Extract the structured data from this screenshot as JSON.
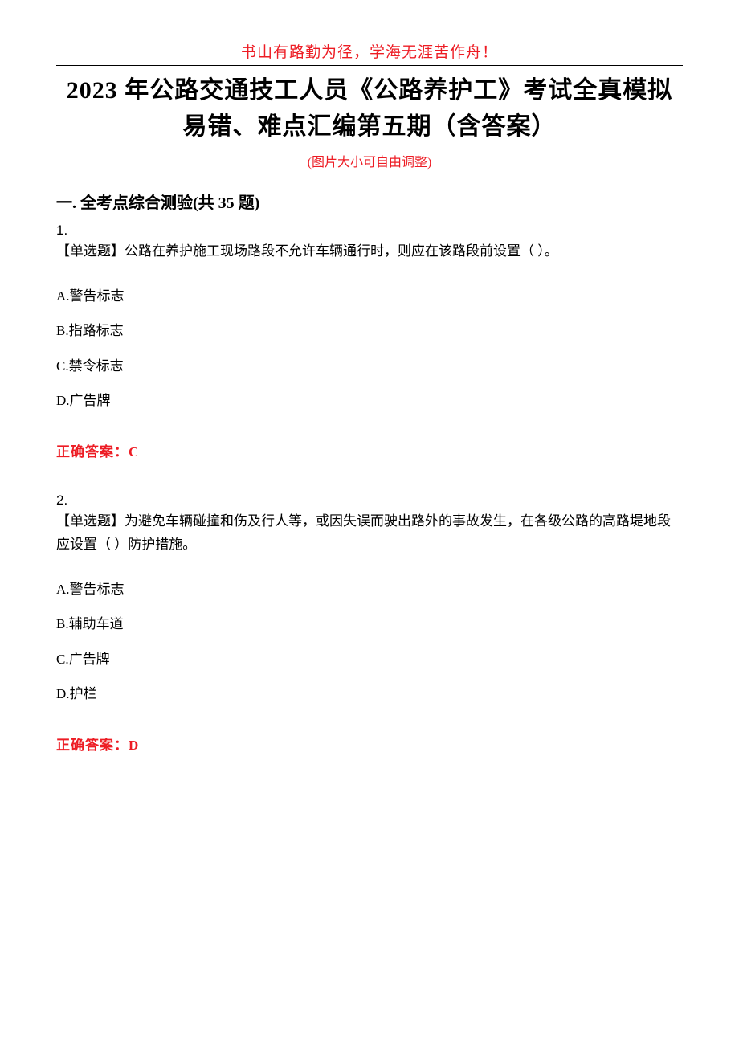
{
  "header": {
    "motto": "书山有路勤为径，学海无涯苦作舟！",
    "title": "2023 年公路交通技工人员《公路养护工》考试全真模拟易错、难点汇编第五期（含答案）",
    "sub_note": "(图片大小可自由调整)"
  },
  "section": {
    "title": "一. 全考点综合测验(共 35 题)"
  },
  "questions": [
    {
      "number": "1.",
      "text": "【单选题】公路在养护施工现场路段不允许车辆通行时，则应在该路段前设置（ ）。",
      "options": [
        "A.警告标志",
        "B.指路标志",
        "C.禁令标志",
        "D.广告牌"
      ],
      "answer": "正确答案：C"
    },
    {
      "number": "2.",
      "text": "【单选题】为避免车辆碰撞和伤及行人等，或因失误而驶出路外的事故发生，在各级公路的高路堤地段应设置（ ）防护措施。",
      "options": [
        "A.警告标志",
        "B.辅助车道",
        "C.广告牌",
        "D.护栏"
      ],
      "answer": "正确答案：D"
    }
  ],
  "styles": {
    "text_color": "#000000",
    "highlight_color": "#ed1c24",
    "background_color": "#ffffff",
    "title_fontsize": 30,
    "body_fontsize": 17,
    "motto_fontsize": 19,
    "section_fontsize": 20
  }
}
